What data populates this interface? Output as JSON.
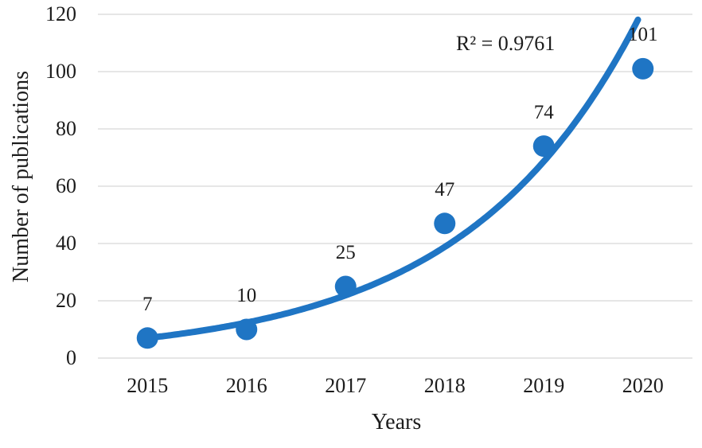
{
  "chart_data": {
    "type": "scatter",
    "title": "",
    "xlabel": "Years",
    "ylabel": "Number of publications",
    "categories": [
      "2015",
      "2016",
      "2017",
      "2018",
      "2019",
      "2020"
    ],
    "values": [
      7,
      10,
      25,
      47,
      74,
      101
    ],
    "point_labels": [
      "7",
      "10",
      "25",
      "47",
      "74",
      "101"
    ],
    "annotation": "R² = 0.9761",
    "yticks": [
      0,
      20,
      40,
      60,
      80,
      100,
      120
    ],
    "ylim": [
      0,
      120
    ],
    "grid": "horizontal",
    "legend": "none",
    "trendline": {
      "type": "exponential",
      "a": 6.998,
      "k": 0.5709
    },
    "colors": {
      "series": "#1F75C4",
      "gridline": "#DEDEDE",
      "text": "#1c1c1c"
    },
    "marker_radius": 13.5,
    "trend_stroke_width": 8
  }
}
